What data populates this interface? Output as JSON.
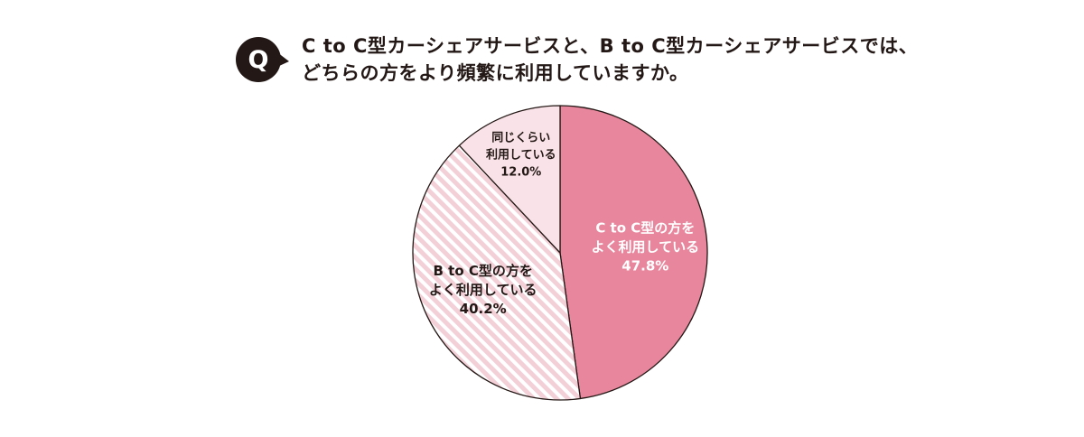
{
  "question": {
    "badge": "Q",
    "line1": "C to C型カーシェアサービスと、B to C型カーシェアサービスでは、",
    "line2": "どちらの方をより頻繁に利用していますか。"
  },
  "colors": {
    "c_to_c": "#e8869d",
    "b_to_c_base": "#f3d0d8",
    "b_to_c_stripe": "#ffffff",
    "same": "#fae3e8",
    "outline": "#231815",
    "label_light": "#ffffff",
    "label_dark": "#231815"
  },
  "chart_data": {
    "type": "pie",
    "title": "",
    "slices": [
      {
        "id": "c_to_c",
        "label_lines": [
          "C to C型の方を",
          "よく利用している"
        ],
        "value": 47.8,
        "value_label": "47.8%",
        "fill": "#e8869d",
        "pattern": "solid",
        "text_color": "#ffffff"
      },
      {
        "id": "b_to_c",
        "label_lines": [
          "B to C型の方を",
          "よく利用している"
        ],
        "value": 40.2,
        "value_label": "40.2%",
        "fill": "#f3d0d8",
        "pattern": "diagonal-stripes",
        "text_color": "#231815"
      },
      {
        "id": "same",
        "label_lines": [
          "同じくらい",
          "利用している"
        ],
        "value": 12.0,
        "value_label": "12.0%",
        "fill": "#fae3e8",
        "pattern": "solid",
        "text_color": "#231815"
      }
    ],
    "start_angle": "12 o'clock",
    "direction": "clockwise",
    "legend": "none (labels inside slices)"
  }
}
